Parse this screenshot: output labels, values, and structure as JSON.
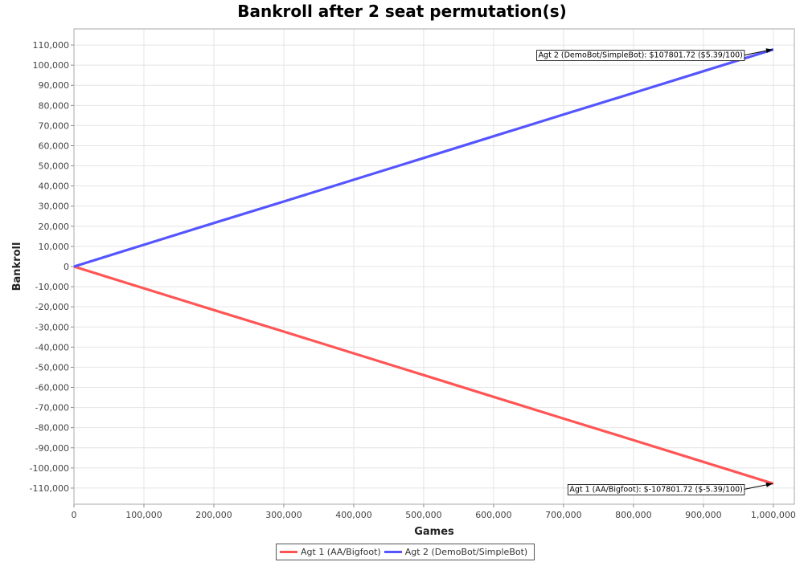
{
  "chart_data": {
    "type": "line",
    "title": "Bankroll after 2 seat permutation(s)",
    "xlabel": "Games",
    "ylabel": "Bankroll",
    "xlim": [
      0,
      1030000
    ],
    "ylim": [
      -118000,
      118000
    ],
    "x_ticks": [
      0,
      100000,
      200000,
      300000,
      400000,
      500000,
      600000,
      700000,
      800000,
      900000,
      1000000
    ],
    "x_tick_labels": [
      "0",
      "100,000",
      "200,000",
      "300,000",
      "400,000",
      "500,000",
      "600,000",
      "700,000",
      "800,000",
      "900,000",
      "1,000,000"
    ],
    "y_ticks": [
      110000,
      100000,
      90000,
      80000,
      70000,
      60000,
      50000,
      40000,
      30000,
      20000,
      10000,
      0,
      -10000,
      -20000,
      -30000,
      -40000,
      -50000,
      -60000,
      -70000,
      -80000,
      -90000,
      -100000,
      -110000
    ],
    "y_tick_labels": [
      "110,000",
      "100,000",
      "90,000",
      "80,000",
      "70,000",
      "60,000",
      "50,000",
      "40,000",
      "30,000",
      "20,000",
      "10,000",
      "0",
      "-10,000",
      "-20,000",
      "-30,000",
      "-40,000",
      "-50,000",
      "-60,000",
      "-70,000",
      "-80,000",
      "-90,000",
      "-100,000",
      "-110,000"
    ],
    "grid": true,
    "legend_position": "bottom",
    "series": [
      {
        "name": "Agt 1 (AA/Bigfoot)",
        "color": "#ff5555",
        "x": [
          0,
          100000,
          200000,
          300000,
          400000,
          500000,
          600000,
          700000,
          800000,
          900000,
          1000000
        ],
        "y": [
          0,
          -10800,
          -21600,
          -32300,
          -43100,
          -53900,
          -64700,
          -75500,
          -86200,
          -97000,
          -107801.72
        ]
      },
      {
        "name": "Agt 2 (DemoBot/SimpleBot)",
        "color": "#5555ff",
        "x": [
          0,
          100000,
          200000,
          300000,
          400000,
          500000,
          600000,
          700000,
          800000,
          900000,
          1000000
        ],
        "y": [
          0,
          10800,
          21600,
          32300,
          43100,
          53900,
          64700,
          75500,
          86200,
          97000,
          107801.72
        ]
      }
    ],
    "annotations": [
      {
        "text": "Agt 1 (AA/Bigfoot): $-107801.72 ($-5.39/100)",
        "x": 1000000,
        "y": -107801.72
      },
      {
        "text": "Agt 2 (DemoBot/SimpleBot): $107801.72 ($5.39/100)",
        "x": 1000000,
        "y": 107801.72
      }
    ]
  }
}
